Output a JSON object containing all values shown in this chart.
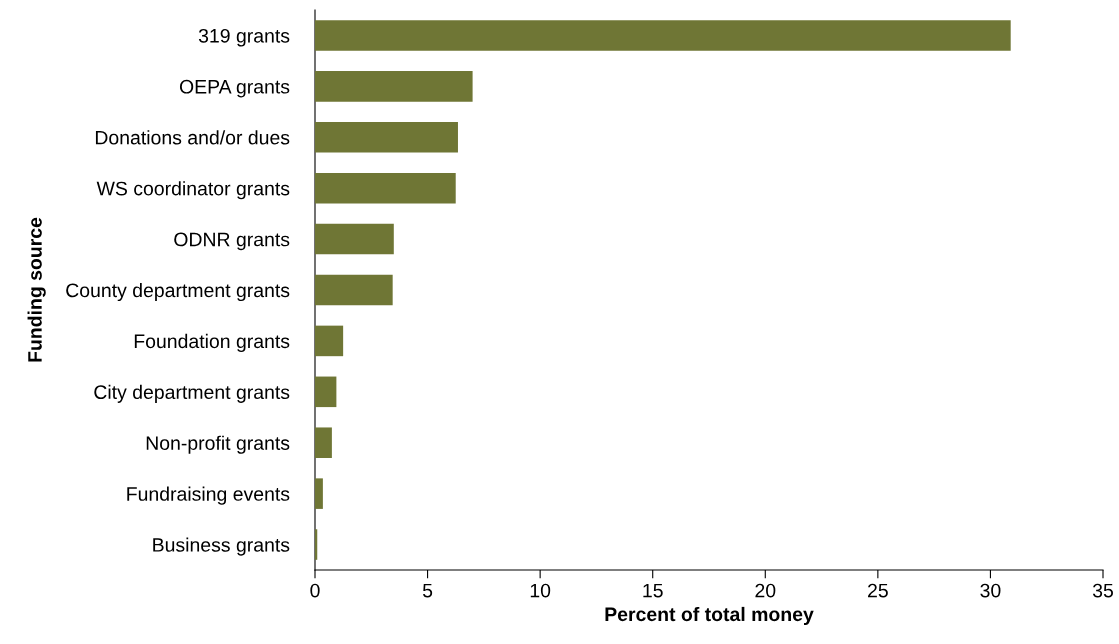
{
  "chart_data": {
    "type": "bar",
    "orientation": "horizontal",
    "xlabel": "Percent of total money",
    "ylabel": "Funding source",
    "categories": [
      "319 grants",
      "OEPA grants",
      "Donations and/or dues",
      "WS coordinator grants",
      "ODNR grants",
      "County department grants",
      "Foundation grants",
      "City department grants",
      "Non-profit grants",
      "Fundraising events",
      "Business grants"
    ],
    "values": [
      30.9,
      7.0,
      6.35,
      6.25,
      3.5,
      3.45,
      1.25,
      0.95,
      0.75,
      0.35,
      0.1
    ],
    "color": "#6f7635",
    "xlim": [
      0,
      35
    ],
    "xticks": [
      0,
      5,
      10,
      15,
      20,
      25,
      30,
      35
    ],
    "grid": false,
    "legend": false
  }
}
